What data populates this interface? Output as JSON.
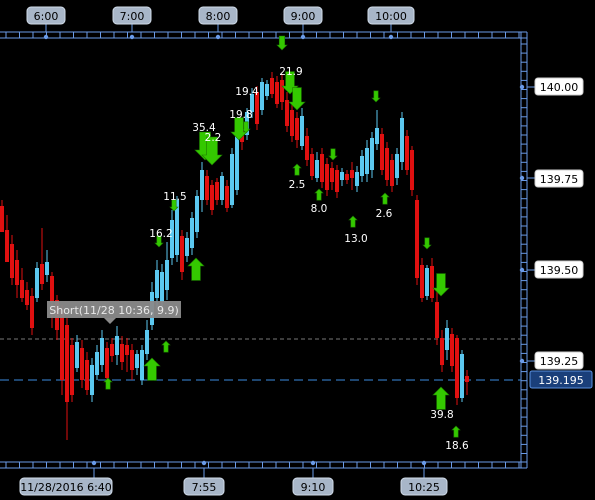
{
  "chart_data": {
    "type": "candlestick",
    "top_time_labels": [
      "6:00",
      "7:00",
      "8:00",
      "9:00",
      "10:00"
    ],
    "bottom_time_labels": [
      "11/28/2016 6:40",
      "7:55",
      "9:10",
      "10:25"
    ],
    "price_labels": [
      "140.00",
      "139.75",
      "139.50",
      "139.25"
    ],
    "current_price": "139.195",
    "tooltip": "Short(11/28 10:36, 9.9)",
    "signal_values": [
      {
        "text": "21.9",
        "dir": "down"
      },
      {
        "text": "19.4",
        "dir": "down"
      },
      {
        "text": "19.8",
        "dir": "down"
      },
      {
        "text": "35.4",
        "dir": "down"
      },
      {
        "text": "2.2",
        "dir": "down"
      },
      {
        "text": "11.5",
        "dir": "down"
      },
      {
        "text": "16.2",
        "dir": "down"
      },
      {
        "text": "2.5",
        "dir": "up"
      },
      {
        "text": "8.0",
        "dir": "up"
      },
      {
        "text": "13.0",
        "dir": "up"
      },
      {
        "text": "2.6",
        "dir": "up"
      },
      {
        "text": "39.8",
        "dir": "up"
      },
      {
        "text": "18.6",
        "dir": "up"
      }
    ],
    "colors": {
      "background": "#000000",
      "bullish": "#5bc8f0",
      "bearish": "#e01010",
      "axis": "#6a9be8",
      "signal": "#34c800",
      "price_line": "#3d8de0"
    }
  }
}
